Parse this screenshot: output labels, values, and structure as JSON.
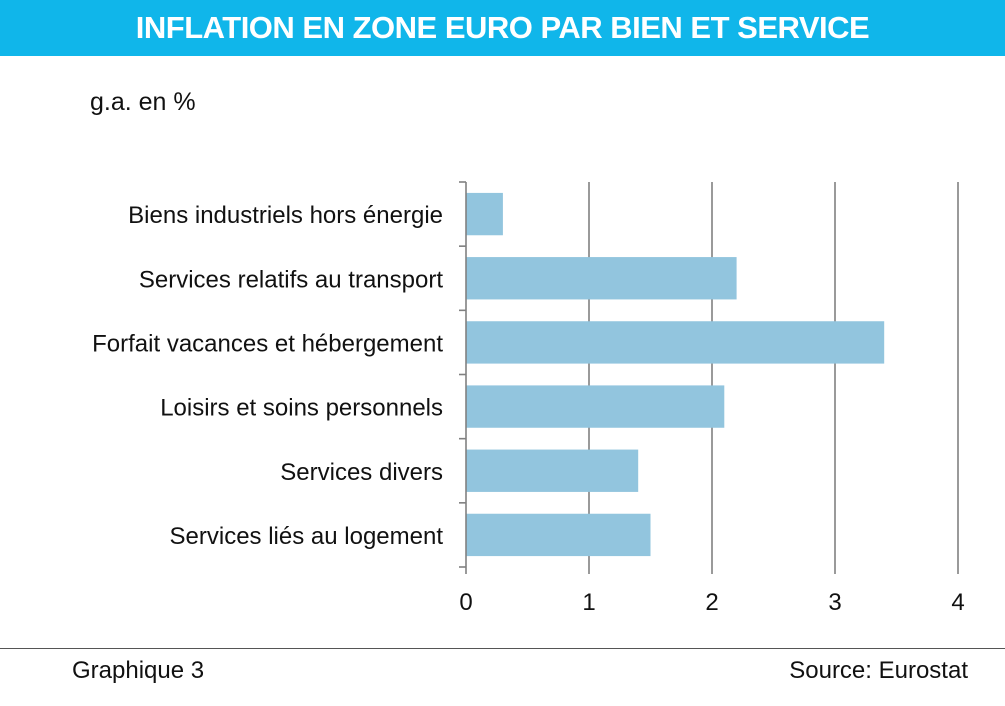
{
  "header": {
    "title": "INFLATION EN ZONE EURO PAR BIEN ET SERVICE"
  },
  "unit_label": "g.a. en %",
  "footer": {
    "left": "Graphique 3",
    "right": "Source: Eurostat"
  },
  "colors": {
    "header_bg": "#10b6ea",
    "bar": "#92c5de",
    "grid": "#808080"
  },
  "chart_data": {
    "type": "bar",
    "orientation": "horizontal",
    "categories": [
      "Biens industriels hors énergie",
      "Services relatifs au transport",
      "Forfait vacances et hébergement",
      "Loisirs et soins personnels",
      "Services divers",
      "Services liés au logement"
    ],
    "values": [
      0.3,
      2.2,
      3.4,
      2.1,
      1.4,
      1.5
    ],
    "xlim": [
      0,
      4
    ],
    "xticks": [
      "0",
      "1",
      "2",
      "3",
      "4"
    ],
    "title": "INFLATION EN ZONE EURO PAR BIEN ET SERVICE",
    "xlabel": "",
    "ylabel": "",
    "unit": "g.a. en %",
    "grid": "vertical"
  }
}
